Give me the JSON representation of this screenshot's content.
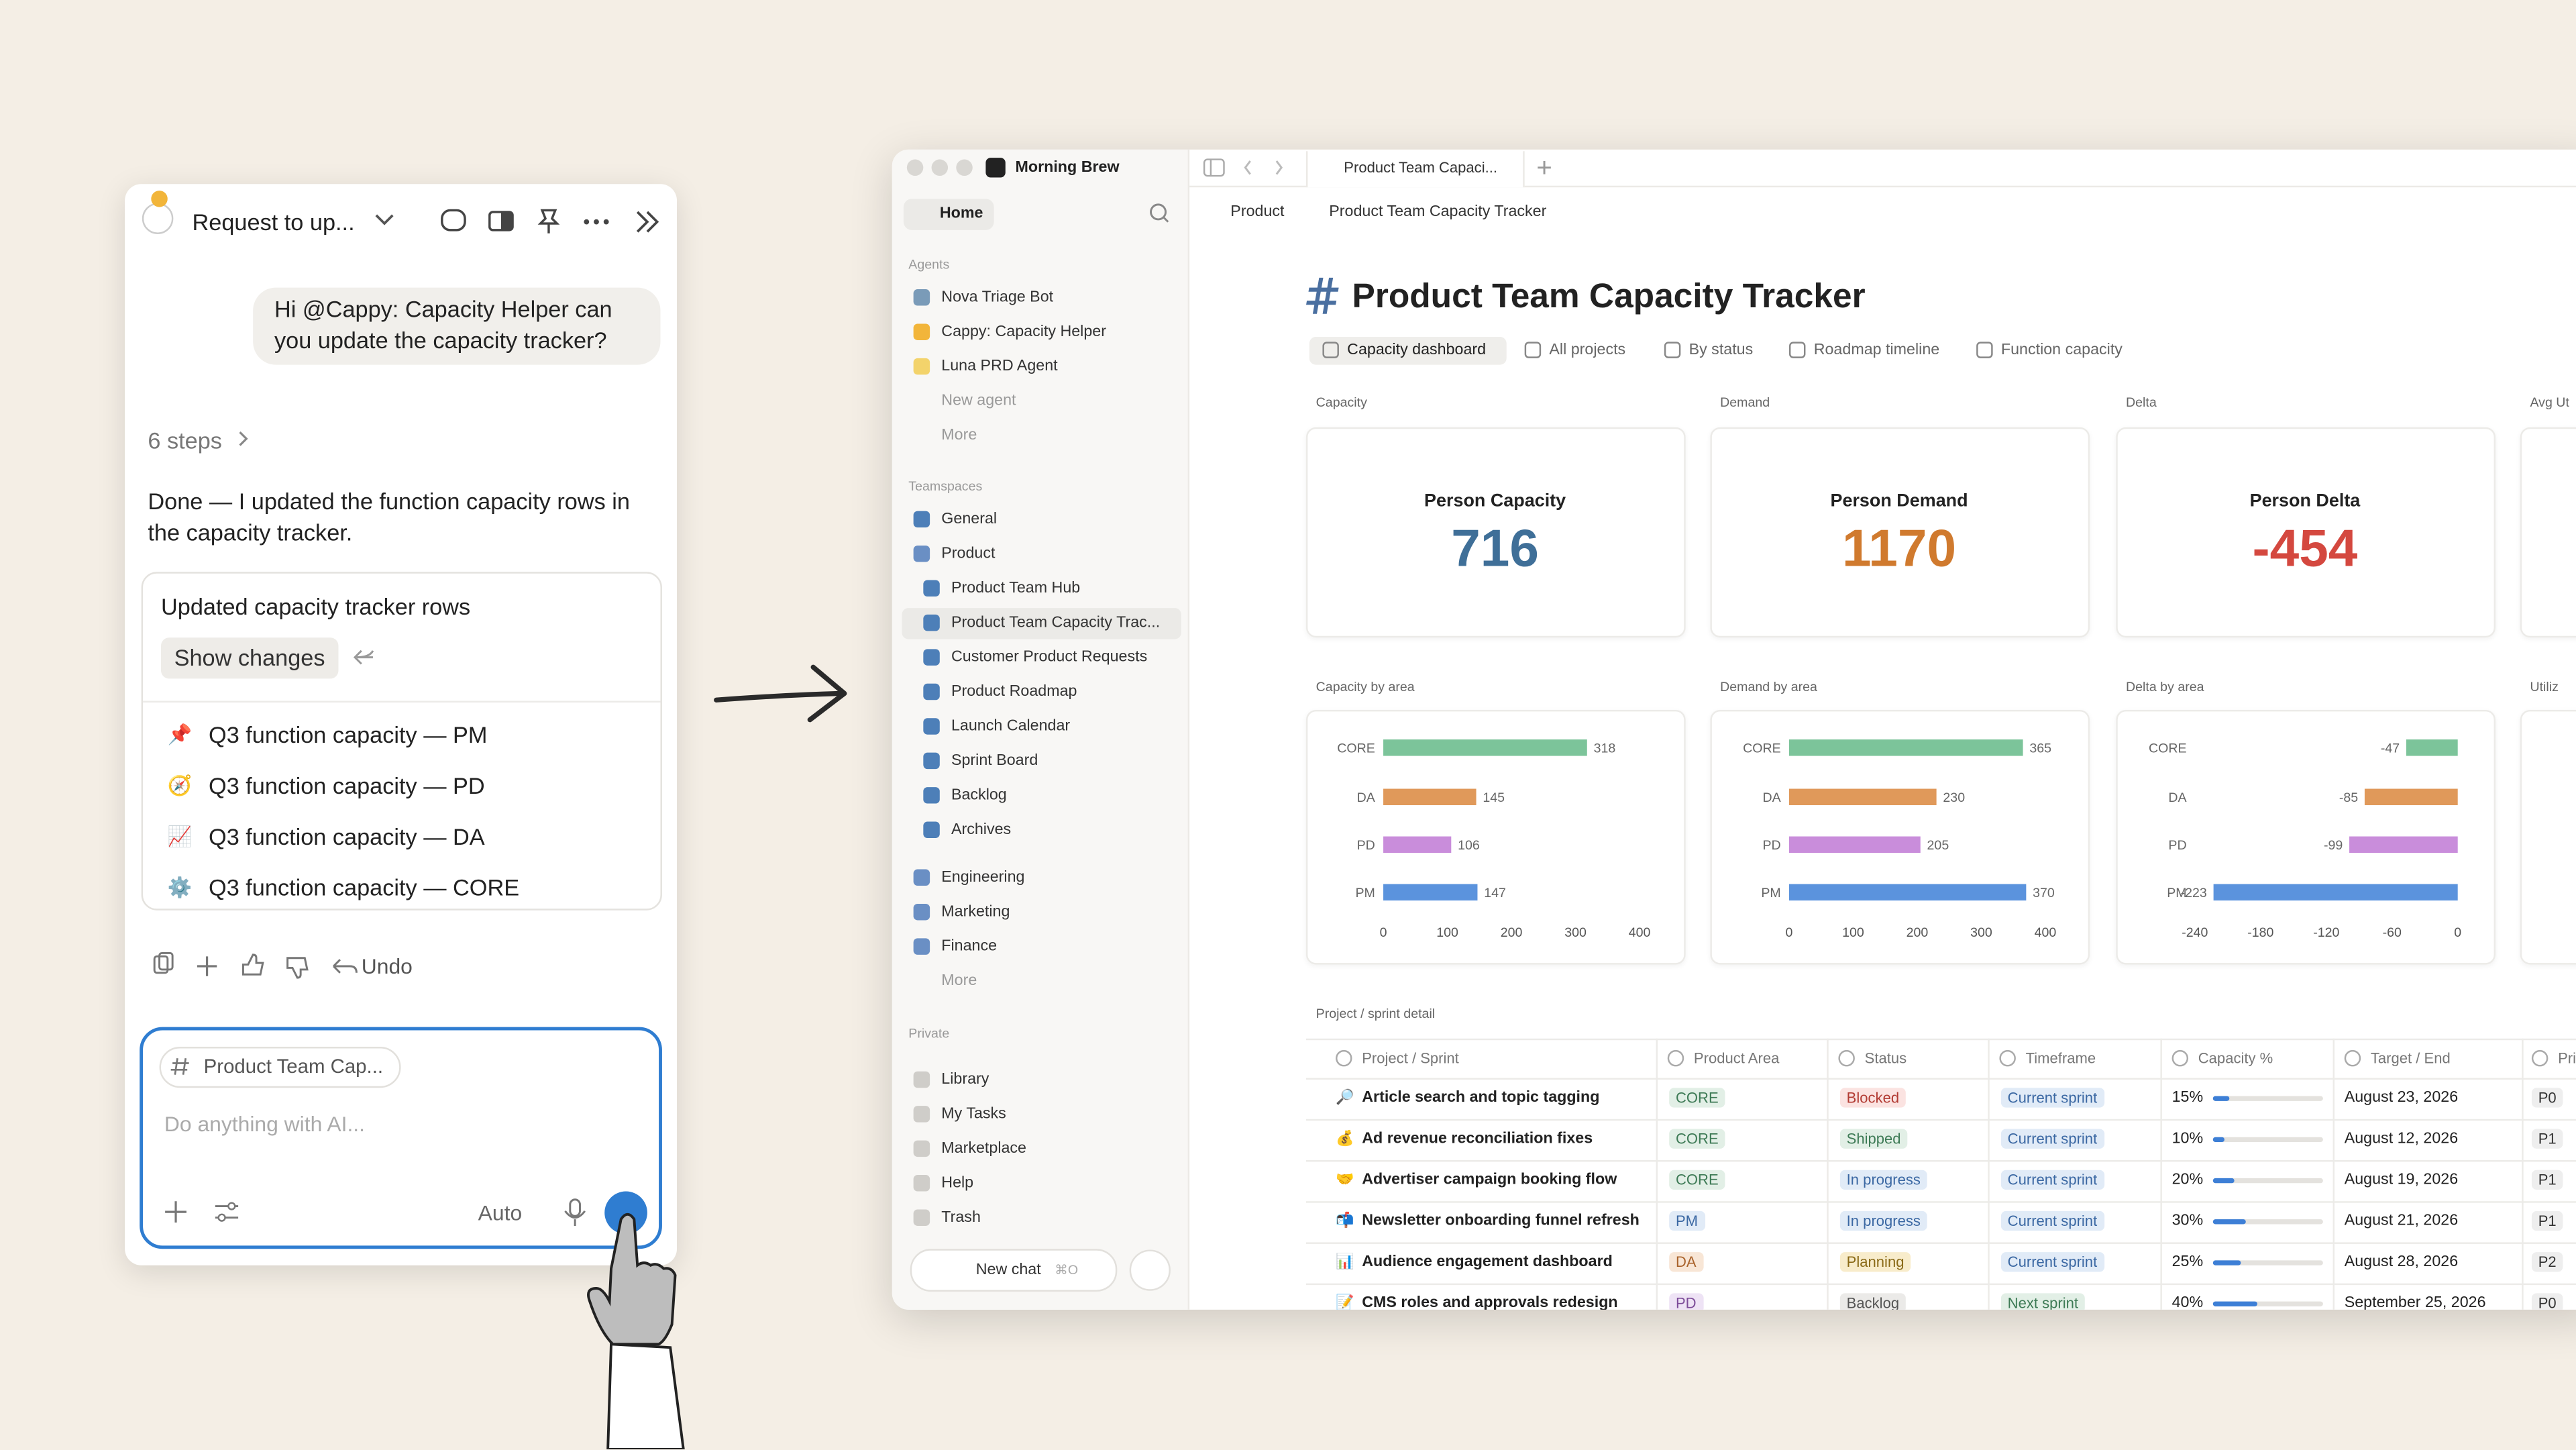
{
  "chat": {
    "title": "Request to up...",
    "user_message": "Hi @Cappy: Capacity Helper can you update the capacity tracker?",
    "steps": "6 steps",
    "reply": "Done — I updated the function capacity rows in the capacity tracker.",
    "card": {
      "title": "Updated capacity tracker rows",
      "button": "Show changes",
      "items": [
        {
          "icon": "📌",
          "text": "Q3 function capacity — PM"
        },
        {
          "icon": "🧭",
          "text": "Q3 function capacity — PD"
        },
        {
          "icon": "📈",
          "text": "Q3 function capacity — DA"
        },
        {
          "icon": "⚙️",
          "text": "Q3 function capacity — CORE"
        }
      ]
    },
    "undo": "Undo",
    "input": {
      "context": "Product Team Cap...",
      "placeholder": "Do anything with AI...",
      "mode": "Auto"
    }
  },
  "app": {
    "workspace": "Morning Brew",
    "tab": "Product Team Capaci...",
    "sidebar": {
      "home": "Home",
      "agents_label": "Agents",
      "agents": [
        "Nova Triage Bot",
        "Cappy: Capacity Helper",
        "Luna PRD Agent"
      ],
      "new_agent": "New agent",
      "more": "More",
      "teamspaces_label": "Teamspaces",
      "teamspaces": [
        "General",
        "Product"
      ],
      "product_pages": [
        "Product Team Hub",
        "Product Team Capacity Trac...",
        "Customer Product Requests",
        "Product Roadmap",
        "Launch Calendar",
        "Sprint Board",
        "Backlog",
        "Archives"
      ],
      "other_teamspaces": [
        "Engineering",
        "Marketing",
        "Finance"
      ],
      "more2": "More",
      "private_label": "Private",
      "private": [
        "Library",
        "My Tasks",
        "Marketplace",
        "Help",
        "Trash"
      ],
      "new_chat": "New chat",
      "shortcut": "⌘O"
    },
    "breadcrumb": [
      "Product",
      "Product Team Capacity Tracker"
    ],
    "page_title": "Product Team Capacity Tracker",
    "views": [
      "Capacity dashboard",
      "All projects",
      "By status",
      "Roadmap timeline",
      "Function capacity"
    ],
    "kpi_sections": [
      "Capacity",
      "Demand",
      "Delta",
      "Avg Ut"
    ],
    "kpis": [
      {
        "label": "Person Capacity",
        "value": 716,
        "color": "#3f6f98"
      },
      {
        "label": "Person Demand",
        "value": 1170,
        "color": "#d07a2e"
      },
      {
        "label": "Person Delta",
        "value": -454,
        "color": "#d4483f"
      }
    ],
    "chart_titles_extra": "Utiliz",
    "charts": [
      {
        "type": "bar",
        "title": "Capacity by area",
        "categories": [
          "CORE",
          "DA",
          "PD",
          "PM"
        ],
        "values": [
          318,
          145,
          106,
          147
        ],
        "colors": [
          "#7cc49a",
          "#e0995a",
          "#c98ddb",
          "#5b93dd"
        ],
        "xlim": [
          0,
          400
        ],
        "xticks": [
          0,
          100,
          200,
          300,
          400
        ]
      },
      {
        "type": "bar",
        "title": "Demand by area",
        "categories": [
          "CORE",
          "DA",
          "PD",
          "PM"
        ],
        "values": [
          365,
          230,
          205,
          370
        ],
        "colors": [
          "#7cc49a",
          "#e0995a",
          "#c98ddb",
          "#5b93dd"
        ],
        "xlim": [
          0,
          400
        ],
        "xticks": [
          0,
          100,
          200,
          300,
          400
        ]
      },
      {
        "type": "bar",
        "title": "Delta by area",
        "categories": [
          "CORE",
          "DA",
          "PD",
          "PM"
        ],
        "values": [
          -47,
          -85,
          -99,
          -223
        ],
        "colors": [
          "#7cc49a",
          "#e0995a",
          "#c98ddb",
          "#5b93dd"
        ],
        "xlim": [
          -240,
          0
        ],
        "xticks": [
          -240,
          -180,
          -120,
          -60,
          0
        ]
      }
    ],
    "table": {
      "title": "Project / sprint detail",
      "columns": [
        "Project / Sprint",
        "Product Area",
        "Status",
        "Timeframe",
        "Capacity %",
        "Target / End",
        "Pri"
      ],
      "tag_styles": {
        "CORE": [
          "#e2efe6",
          "#3d7a55"
        ],
        "PM": [
          "#e1ebf7",
          "#3b68a3"
        ],
        "DA": [
          "#f8e6d6",
          "#a9622a"
        ],
        "PD": [
          "#eee3f5",
          "#7d4c99"
        ],
        "Blocked": [
          "#fbe3e1",
          "#b23b33"
        ],
        "Shipped": [
          "#e2efe6",
          "#3d7a55"
        ],
        "In progress": [
          "#e1ebf7",
          "#3b68a3"
        ],
        "Planning": [
          "#f8eccb",
          "#8a6a17"
        ],
        "Backlog": [
          "#ebeae8",
          "#555555"
        ],
        "Current sprint": [
          "#e1ebf7",
          "#3b68a3"
        ],
        "Next sprint": [
          "#e2efe6",
          "#3d7a55"
        ]
      },
      "rows": [
        {
          "icon": "🔎",
          "name": "Article search and topic tagging",
          "area": "CORE",
          "status": "Blocked",
          "timeframe": "Current sprint",
          "capacity": 15,
          "capacity_label": "15%",
          "target": "August 23, 2026",
          "priority": "P0"
        },
        {
          "icon": "💰",
          "name": "Ad revenue reconciliation fixes",
          "area": "CORE",
          "status": "Shipped",
          "timeframe": "Current sprint",
          "capacity": 10,
          "capacity_label": "10%",
          "target": "August 12, 2026",
          "priority": "P1"
        },
        {
          "icon": "🤝",
          "name": "Advertiser campaign booking flow",
          "area": "CORE",
          "status": "In progress",
          "timeframe": "Current sprint",
          "capacity": 20,
          "capacity_label": "20%",
          "target": "August 19, 2026",
          "priority": "P1"
        },
        {
          "icon": "📬",
          "name": "Newsletter onboarding funnel refresh",
          "area": "PM",
          "status": "In progress",
          "timeframe": "Current sprint",
          "capacity": 30,
          "capacity_label": "30%",
          "target": "August 21, 2026",
          "priority": "P1"
        },
        {
          "icon": "📊",
          "name": "Audience engagement dashboard",
          "area": "DA",
          "status": "Planning",
          "timeframe": "Current sprint",
          "capacity": 25,
          "capacity_label": "25%",
          "target": "August 28, 2026",
          "priority": "P2"
        },
        {
          "icon": "📝",
          "name": "CMS roles and approvals redesign",
          "area": "PD",
          "status": "Backlog",
          "timeframe": "Next sprint",
          "capacity": 40,
          "capacity_label": "40%",
          "target": "September 25, 2026",
          "priority": "P0"
        }
      ]
    }
  }
}
